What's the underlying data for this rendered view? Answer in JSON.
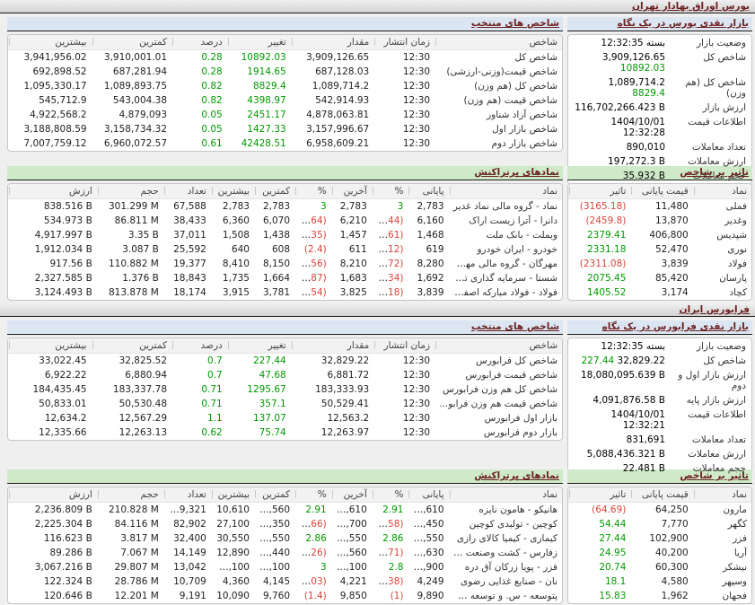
{
  "colors": {
    "positive": "#009900",
    "negative": "#d9443c",
    "section_title": "#6b1f1f",
    "blue_header_bg": "#dbe6f2",
    "green_header_bg": "#cfeac8"
  },
  "tse": {
    "bar_title": "بورس اوراق بهادار تهران",
    "glance": {
      "title": "بازار نقدی بورس در یک نگاه",
      "rows": [
        {
          "label": "وضعیت بازار",
          "value": "بسته 12:32:35"
        },
        {
          "label": "شاخص کل",
          "value": "3,909,126.65",
          "change": "10892.03"
        },
        {
          "label": "شاخص کل (هم وزن)",
          "value": "1,089,714.2",
          "change": "8829.4"
        },
        {
          "label": "ارزش بازار",
          "value": "116,702,266.423 B"
        },
        {
          "label": "اطلاعات قیمت",
          "value": "1404/10/01 12:32:28"
        },
        {
          "label": "تعداد معاملات",
          "value": "890,010"
        },
        {
          "label": "ارزش معاملات",
          "value": "197,272.3 B"
        },
        {
          "label": "حجم معاملات",
          "value": "35.932 B"
        }
      ]
    },
    "indices": {
      "title": "شاخص های منتخب",
      "link_name": "index-link",
      "headers": [
        "شاخص",
        "زمان انتشار",
        "مقدار",
        "تغییر",
        "درصد",
        "کمترین",
        "بیشترین"
      ],
      "signed_cols": [
        3,
        4
      ],
      "rows": [
        [
          "شاخص کل",
          "12:30",
          "3,909,126.65",
          "10892.03",
          "0.28",
          "3,910,001.01",
          "3,941,956.02"
        ],
        [
          "شاخص قیمت(وزنی-ارزشی)",
          "12:30",
          "687,128.03",
          "1914.65",
          "0.28",
          "687,281.94",
          "692,898.52"
        ],
        [
          "شاخص کل (هم وزن)",
          "12:30",
          "1,089,714.2",
          "8829.4",
          "0.82",
          "1,089,893.75",
          "1,095,330.17"
        ],
        [
          "شاخص قیمت (هم وزن)",
          "12:30",
          "542,914.93",
          "4398.97",
          "0.82",
          "543,004.38",
          "545,712.9"
        ],
        [
          "شاخص آزاد شناور",
          "12:30",
          "4,878,063.81",
          "2451.17",
          "0.05",
          "4,879,093",
          "4,922,568.2"
        ],
        [
          "شاخص بازار اول",
          "12:30",
          "3,157,996.67",
          "1427.33",
          "0.05",
          "3,158,734.32",
          "3,188,808.59"
        ],
        [
          "شاخص بازار دوم",
          "12:30",
          "6,958,609.21",
          "42428.51",
          "0.61",
          "6,960,072.57",
          "7,007,759.12"
        ]
      ]
    },
    "active": {
      "title": "نمادهای پرتراکنش",
      "link_name": "symbol-link",
      "headers": [
        "نماد",
        "پایانی",
        "%",
        "آخرین",
        "%",
        "کمترین",
        "بیشترین",
        "تعداد",
        "حجم",
        "ارزش"
      ],
      "signed_cols": [
        2,
        4
      ],
      "rows": [
        [
          "نماد - گروه مالی نماد غدیر",
          "2,783",
          "3",
          "2,783",
          "3",
          "2,783",
          "2,783",
          "67,588",
          "301.299 M",
          "838.516 B"
        ],
        [
          "دانرا - آترا زیست اراک",
          "6,160",
          "(1.44)",
          "6,210",
          "(0.64)",
          "6,070",
          "6,360",
          "38,433",
          "86.811 M",
          "534.973 B"
        ],
        [
          "وبملت - بانک ملت",
          "1,468",
          "(0.61)",
          "1,457",
          "(1.35)",
          "1,438",
          "1,508",
          "37,011",
          "3.35 B",
          "4,917.997 B"
        ],
        [
          "خودرو - ایران خودرو",
          "619",
          "(1.12)",
          "611",
          "(2.4)",
          "608",
          "640",
          "25,592",
          "3.087 B",
          "1,912.034 B"
        ],
        [
          "مهرگان - گروه مالی مهرگان تامین پا...",
          "8,280",
          "(0.72)",
          "8,210",
          "(1.56)",
          "8,150",
          "8,410",
          "19,377",
          "110.882 M",
          "917.56 B"
        ],
        [
          "شستا - سرمایه گذاری تامین اجتما...",
          "1,692",
          "(1.34)",
          "1,683",
          "(1.87)",
          "1,664",
          "1,735",
          "18,843",
          "1.376 B",
          "2,327.585 B"
        ],
        [
          "فولاد - فولاد مبارکه اصفهان",
          "3,839",
          "(1.18)",
          "3,825",
          "(1.54)",
          "3,781",
          "3,915",
          "18,174",
          "813.878 M",
          "3,124.493 B"
        ]
      ]
    },
    "impact": {
      "title": "تاثیر بر شاخص",
      "link_name": "symbol-link",
      "headers": [
        "نماد",
        "قیمت پایانی",
        "تاثیر"
      ],
      "signed_cols": [
        2
      ],
      "rows": [
        [
          "فملی",
          "11,480",
          "(3165.18)"
        ],
        [
          "وغدیر",
          "13,870",
          "(2459.8)"
        ],
        [
          "شپدیس",
          "406,800",
          "2379.41"
        ],
        [
          "نوری",
          "52,470",
          "2331.18"
        ],
        [
          "فولاد",
          "3,839",
          "(2311.08)"
        ],
        [
          "پارسان",
          "85,420",
          "2075.45"
        ],
        [
          "کچاد",
          "3,174",
          "1405.52"
        ]
      ]
    }
  },
  "ifb": {
    "bar_title": "فرابورس ایران",
    "glance": {
      "title": "بازار نقدی فرابورس در یک نگاه",
      "rows": [
        {
          "label": "وضعیت بازار",
          "value": "بسته 12:32:35"
        },
        {
          "label": "شاخص کل",
          "value": "32,829.22",
          "change": "227.44"
        },
        {
          "label": "ارزش بازار اول و دوم",
          "value": "18,080,095.639 B"
        },
        {
          "label": "ارزش بازار پایه",
          "value": "4,091,876.58 B"
        },
        {
          "label": "اطلاعات قیمت",
          "value": "1404/10/01 12:32:21"
        },
        {
          "label": "تعداد معاملات",
          "value": "831,691"
        },
        {
          "label": "ارزش معاملات",
          "value": "5,088,436.321 B"
        },
        {
          "label": "حجم معاملات",
          "value": "22.481 B"
        }
      ]
    },
    "indices": {
      "title": "شاخص های منتخب",
      "link_name": "index-link",
      "headers": [
        "شاخص",
        "زمان انتشار",
        "مقدار",
        "تغییر",
        "درصد",
        "کمترین",
        "بیشترین"
      ],
      "signed_cols": [
        3,
        4
      ],
      "rows": [
        [
          "شاخص کل فرابورس",
          "12:30",
          "32,829.22",
          "227.44",
          "0.7",
          "32,825.52",
          "33,022.45"
        ],
        [
          "شاخص قیمت فرابورس",
          "12:30",
          "6,881.72",
          "47.68",
          "0.7",
          "6,880.94",
          "6,922.22"
        ],
        [
          "شاخص کل هم وزن فرابورس",
          "12:30",
          "183,333.93",
          "1295.67",
          "0.71",
          "183,337.78",
          "184,435.45"
        ],
        [
          "شاخص قیمت هم وزن فرابو...",
          "12:30",
          "50,529.41",
          "357.1",
          "0.71",
          "50,530.48",
          "50,833.01"
        ],
        [
          "بازار اول فرابورس",
          "12:30",
          "12,563.2",
          "137.07",
          "1.1",
          "12,567.29",
          "12,634.2"
        ],
        [
          "بازار دوم فرابورس",
          "12:30",
          "12,263.97",
          "75.74",
          "0.62",
          "12,263.13",
          "12,335.66"
        ]
      ]
    },
    "active": {
      "title": "نمادهای پرتراکنش",
      "link_name": "symbol-link",
      "headers": [
        "نماد",
        "پایانی",
        "%",
        "آخرین",
        "%",
        "کمترین",
        "بیشترین",
        "تعداد",
        "حجم",
        "ارزش"
      ],
      "signed_cols": [
        2,
        4
      ],
      "rows": [
        [
          "هانیکو - هامون نایزه",
          "10,610",
          "2.91",
          "10,610",
          "2.91",
          "10,560",
          "10,610",
          "149,321",
          "210.828 M",
          "2,236.809 B"
        ],
        [
          "کوچین - تولیدی کوچین",
          "26,450",
          "(2.58)",
          "26,700",
          "(1.66)",
          "26,350",
          "27,100",
          "82,902",
          "84.116 M",
          "2,225.304 B"
        ],
        [
          "کیمازی - کیمیا کالای رازی",
          "30,550",
          "2.86",
          "30,550",
          "2.86",
          "30,550",
          "30,550",
          "32,400",
          "3.817 M",
          "116.623 B"
        ],
        [
          "زفارس - کشت وصنعت و دامپروری پ...",
          "12,630",
          "(0.71)",
          "12,560",
          "(1.26)",
          "12,440",
          "12,890",
          "14,149",
          "7.067 M",
          "89.286 B"
        ],
        [
          "فزر - پویا زرکان آق دره",
          "102,900",
          "2.8",
          "103,100",
          "3",
          "101,100",
          "103,100",
          "13,042",
          "29.807 M",
          "3,067.216 B"
        ],
        [
          "نان - صنایع غذایی رضوی",
          "4,249",
          "(0.38)",
          "4,221",
          "(1.03)",
          "4,145",
          "4,360",
          "10,709",
          "28.786 M",
          "122.324 B"
        ],
        [
          "پتوسعه - س. و توسعه صنایع لاستیک",
          "9,890",
          "(1)",
          "9,850",
          "(1.4)",
          "9,760",
          "10,090",
          "9,191",
          "12.201 M",
          "120.646 B"
        ]
      ]
    },
    "impact": {
      "title": "تاثیر بر شاخص",
      "link_name": "symbol-link",
      "headers": [
        "نماد",
        "قیمت پایانی",
        "تاثیر"
      ],
      "signed_cols": [
        2
      ],
      "rows": [
        [
          "مارون",
          "64,250",
          "(64.69)"
        ],
        [
          "کگهر",
          "7,770",
          "54.44"
        ],
        [
          "فزر",
          "102,900",
          "27.44"
        ],
        [
          "آریا",
          "40,200",
          "24.95"
        ],
        [
          "نیشکر",
          "60,300",
          "20.74"
        ],
        [
          "وسپهر",
          "4,580",
          "18.1"
        ],
        [
          "فجهان",
          "1,962",
          "15.83"
        ]
      ]
    }
  }
}
